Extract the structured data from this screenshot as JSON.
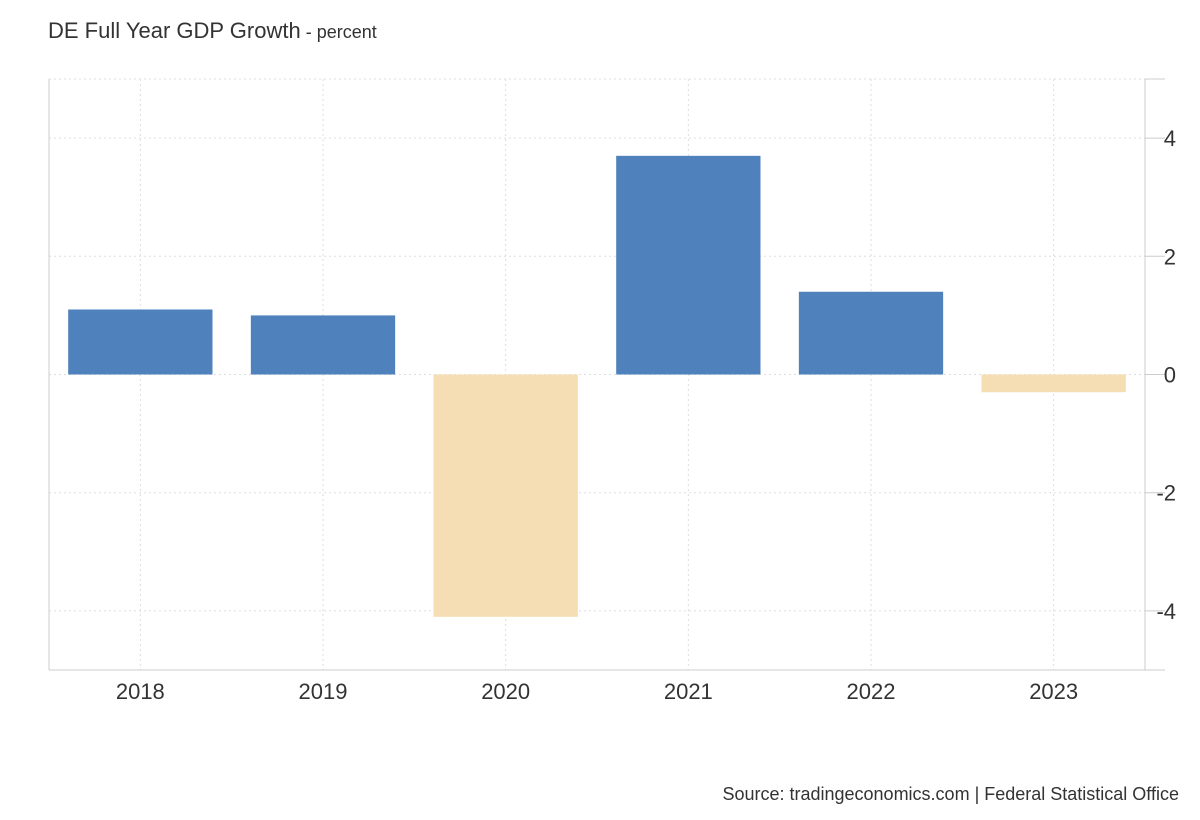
{
  "chart_title": "DE Full Year GDP Growth",
  "chart_subtitle": " - percent",
  "source": "Source: tradingeconomics.com | Federal Statistical Office",
  "colors": {
    "positive": "#4f81bd",
    "negative": "#f5deb3",
    "grid": "#dddddd",
    "axis": "#cccccc"
  },
  "chart_data": {
    "type": "bar",
    "title": "DE Full Year GDP Growth",
    "subtitle": "percent",
    "categories": [
      "2018",
      "2019",
      "2020",
      "2021",
      "2022",
      "2023"
    ],
    "values": [
      1.1,
      1.0,
      -4.1,
      3.7,
      1.4,
      -0.3
    ],
    "ylim": [
      -5,
      5
    ],
    "yticks": [
      -4,
      -2,
      0,
      2,
      4
    ],
    "ytick_labels": [
      "-4",
      "-2",
      "0",
      "2",
      "4"
    ],
    "y_axis_side": "right",
    "grid": true,
    "legend": false
  }
}
